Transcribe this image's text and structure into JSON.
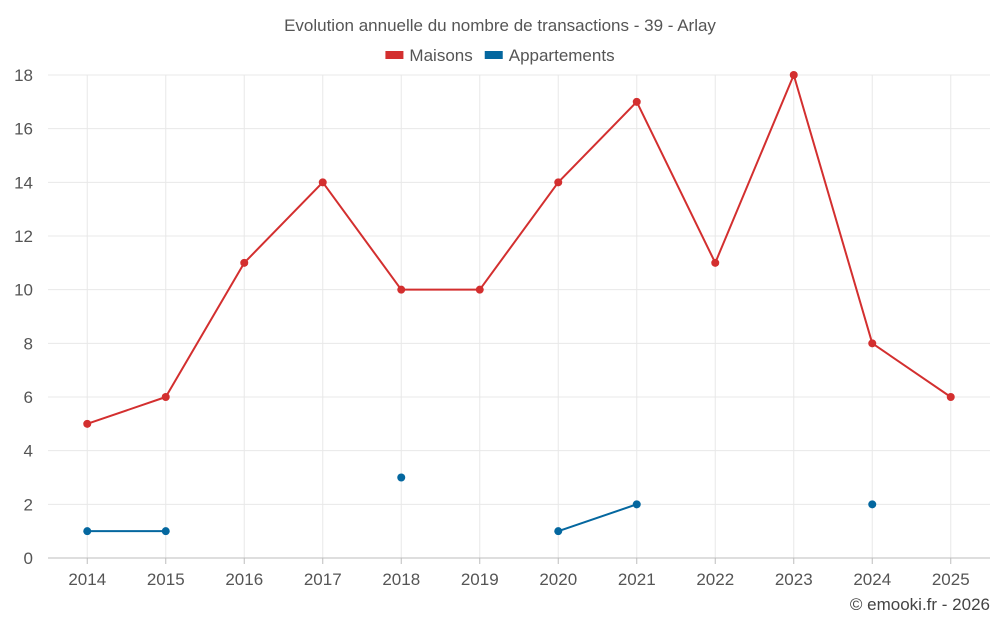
{
  "chart_data": {
    "type": "line",
    "title": "Evolution annuelle du nombre de transactions - 39 - Arlay",
    "categories": [
      "2014",
      "2015",
      "2016",
      "2017",
      "2018",
      "2019",
      "2020",
      "2021",
      "2022",
      "2023",
      "2024",
      "2025"
    ],
    "series": [
      {
        "name": "Maisons",
        "color": "#d32f2f",
        "values": [
          5,
          6,
          11,
          14,
          10,
          10,
          14,
          17,
          11,
          18,
          8,
          6
        ]
      },
      {
        "name": "Appartements",
        "color": "#04679f",
        "values": [
          1,
          1,
          null,
          null,
          3,
          null,
          1,
          2,
          null,
          null,
          2,
          null
        ]
      }
    ],
    "ylim": [
      0,
      18
    ],
    "yticks": [
      0,
      2,
      4,
      6,
      8,
      10,
      12,
      14,
      16,
      18
    ],
    "grid": true,
    "legend": "top-center",
    "xlabel": "",
    "ylabel": ""
  },
  "credit": "© emooki.fr - 2026"
}
